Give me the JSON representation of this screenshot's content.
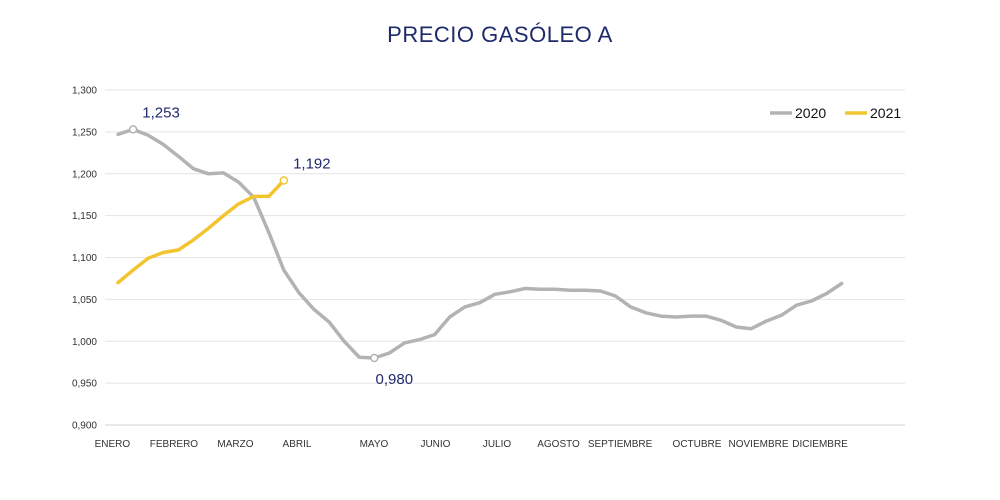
{
  "chart_data": {
    "type": "line",
    "title": "PRECIO GASÓLEO A",
    "xlabel": "",
    "ylabel": "",
    "ylim": [
      0.9,
      1.3
    ],
    "y_ticks": [
      "0,900",
      "0,950",
      "1,000",
      "1,050",
      "1,100",
      "1,150",
      "1,200",
      "1,250",
      "1,300"
    ],
    "y_tick_values": [
      0.9,
      0.95,
      1.0,
      1.05,
      1.1,
      1.15,
      1.2,
      1.25,
      1.3
    ],
    "x_month_labels": [
      "ENERO",
      "FEBRERO",
      "MARZO",
      "ABRIL",
      "MAYO",
      "JUNIO",
      "JULIO",
      "AGOSTO",
      "SEPTIEMBRE",
      "OCTUBRE",
      "NOVIEMBRE",
      "DICIEMBRE"
    ],
    "x_month_label_weeks": [
      1,
      5,
      9,
      13,
      18,
      22,
      26,
      30,
      34,
      39,
      43,
      47
    ],
    "x_week_count": 53,
    "grid": true,
    "legend_position": "top-right",
    "series": [
      {
        "name": "2020",
        "color": "#b3b3b3",
        "values": [
          1.247,
          1.253,
          1.246,
          1.235,
          1.221,
          1.206,
          1.2,
          1.201,
          1.19,
          1.172,
          1.13,
          1.085,
          1.058,
          1.038,
          1.023,
          1.0,
          0.981,
          0.98,
          0.986,
          0.998,
          1.002,
          1.008,
          1.029,
          1.041,
          1.046,
          1.056,
          1.059,
          1.063,
          1.062,
          1.062,
          1.061,
          1.061,
          1.06,
          1.054,
          1.041,
          1.034,
          1.03,
          1.029,
          1.03,
          1.03,
          1.025,
          1.017,
          1.015,
          1.024,
          1.031,
          1.043,
          1.048,
          1.057,
          1.069
        ]
      },
      {
        "name": "2021",
        "color": "#f2c530",
        "values": [
          1.07,
          1.085,
          1.099,
          1.106,
          1.109,
          1.121,
          1.135,
          1.15,
          1.164,
          1.173,
          1.173,
          1.192
        ]
      }
    ],
    "annotations": [
      {
        "series": "2020",
        "index": 1,
        "label": "1,253",
        "position": "above"
      },
      {
        "series": "2020",
        "index": 17,
        "label": "0,980",
        "position": "below"
      },
      {
        "series": "2021",
        "index": 11,
        "label": "1,192",
        "position": "above"
      }
    ]
  }
}
